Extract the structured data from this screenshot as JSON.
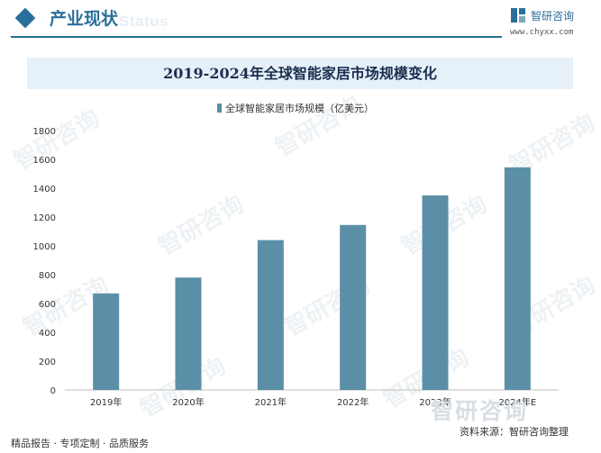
{
  "header": {
    "section_title": "产业现状",
    "watermark_text": "Status",
    "brand_name": "智研咨询",
    "brand_url": "www.chyxx.com"
  },
  "chart_title": "2019-2024年全球智能家居市场规模变化",
  "watermark_text": "智研咨询",
  "footer": {
    "left_text": "精品报告 · 专项定制 · 品质服务",
    "brand_mark": "智研咨询",
    "source": "资料来源：智研咨询整理"
  },
  "colors": {
    "accent": "#2a6f9a",
    "bar": "#5b8fa8",
    "title_band": "#e6f0f8"
  },
  "chart_data": {
    "type": "bar",
    "title": "2019-2024年全球智能家居市场规模变化",
    "categories": [
      "2019年",
      "2020年",
      "2021年",
      "2022年",
      "2023年",
      "2024年E"
    ],
    "series": [
      {
        "name": "全球智能家居市场规模（亿美元）",
        "values": [
          670,
          780,
          1040,
          1145,
          1350,
          1545
        ]
      }
    ],
    "y_ticks": [
      0,
      200,
      400,
      600,
      800,
      1000,
      1200,
      1400,
      1600,
      1800
    ],
    "ylim": [
      0,
      1800
    ],
    "grid": false,
    "legend_position": "top-center",
    "xlabel": "",
    "ylabel": ""
  }
}
